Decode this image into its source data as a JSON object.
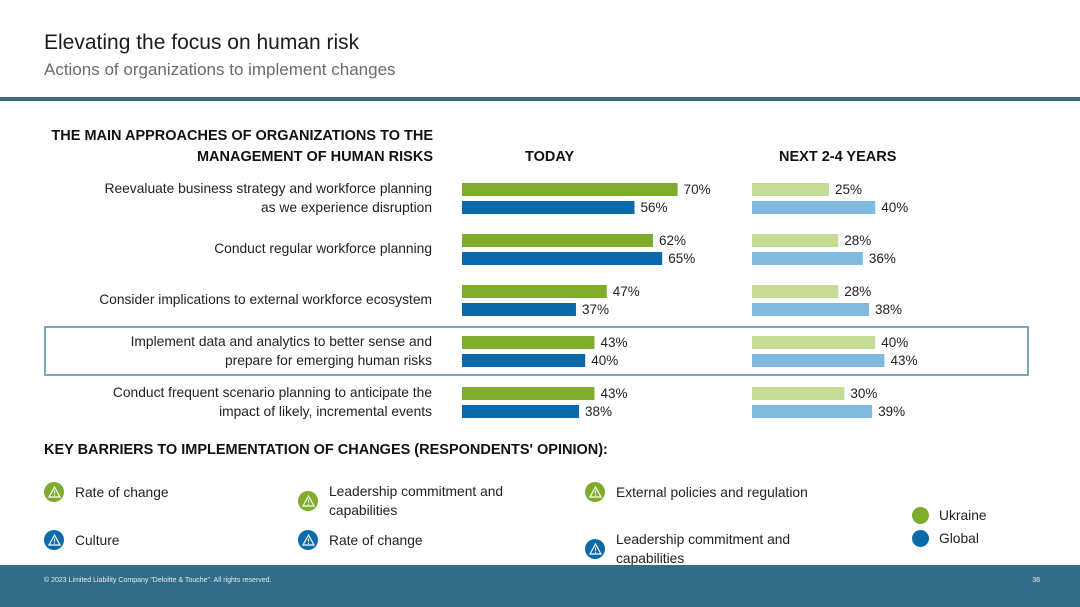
{
  "header": {
    "title": "Elevating the focus on human risk",
    "subtitle": "Actions of organizations to implement changes"
  },
  "colors": {
    "ukraine_today": "#80ac2b",
    "global_today": "#0a6aab",
    "ukraine_future": "#c4dc96",
    "global_future": "#80bbdf",
    "rule": "#3d6b7e",
    "footer": "#336c86"
  },
  "chart_data": {
    "type": "bar",
    "orientation": "horizontal",
    "title": "THE MAIN APPROACHES OF ORGANIZATIONS TO THE MANAGEMENT OF HUMAN RISKS",
    "panels": [
      "TODAY",
      "NEXT 2-4 YEARS"
    ],
    "categories": [
      [
        "Reevaluate business strategy and workforce planning",
        "as we experience disruption"
      ],
      [
        "Conduct regular workforce planning"
      ],
      [
        "Consider implications to external workforce ecosystem"
      ],
      [
        "Implement data and analytics to better sense and",
        "prepare for emerging human risks"
      ],
      [
        "Conduct frequent scenario planning to anticipate the",
        "impact of likely, incremental events"
      ]
    ],
    "highlighted_category_index": 3,
    "unit": "%",
    "series": [
      {
        "name": "Ukraine",
        "panel": "TODAY",
        "values": [
          70,
          62,
          47,
          43,
          43
        ]
      },
      {
        "name": "Global",
        "panel": "TODAY",
        "values": [
          56,
          65,
          37,
          40,
          38
        ]
      },
      {
        "name": "Ukraine",
        "panel": "NEXT 2-4 YEARS",
        "values": [
          25,
          28,
          28,
          40,
          30
        ]
      },
      {
        "name": "Global",
        "panel": "NEXT 2-4 YEARS",
        "values": [
          40,
          36,
          38,
          43,
          39
        ]
      }
    ]
  },
  "barriers": {
    "title": "KEY BARRIERS TO IMPLEMENTATION OF CHANGES (RESPONDENTS' OPINION):",
    "ukraine": [
      "Rate of change",
      "Leadership commitment and capabilities",
      "External policies and regulation"
    ],
    "global": [
      "Culture",
      "Rate of change",
      "Leadership commitment and capabilities"
    ]
  },
  "legend": {
    "ukraine": "Ukraine",
    "global": "Global"
  },
  "footer": {
    "copyright": "© 2023  Limited Liability Company \"Deloitte & Touche\". All rights reserved.",
    "page": "38"
  }
}
